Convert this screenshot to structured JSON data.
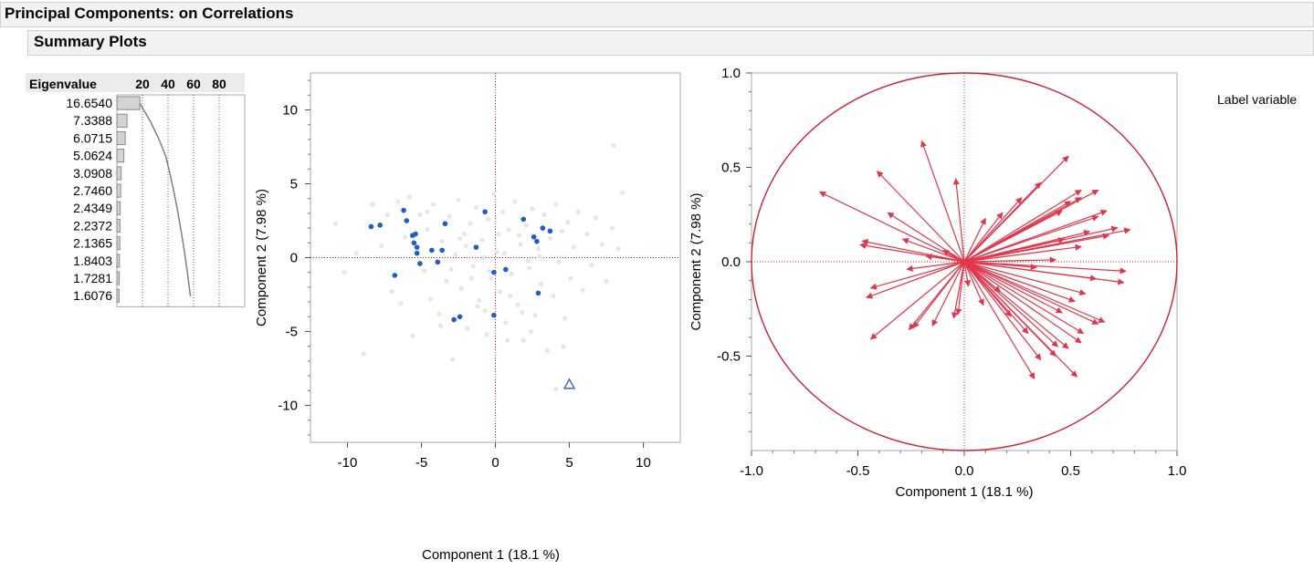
{
  "headers": {
    "main_title": "Principal Components: on Correlations",
    "sub_title": "Summary Plots"
  },
  "label_variable": "Label variable",
  "bottom_xlabel": "Component 1  (18.1 %)",
  "colors": {
    "header_bg": "#f2f2f2",
    "bar_fill": "#d3d3d3",
    "score_point": "#1f5fbf",
    "background_point": "#e6e6e6",
    "loading_arrow": "#e0364b",
    "reference_line": "#cc2233"
  },
  "chart_data": [
    {
      "type": "bar",
      "name": "eigenvalue-bars",
      "header_label": "Eigenvalue",
      "values": [
        16.654,
        7.3388,
        6.0715,
        5.0624,
        3.0908,
        2.746,
        2.4349,
        2.2372,
        2.1365,
        1.8403,
        1.7281,
        1.6076
      ],
      "value_labels": [
        "16.6540",
        "7.3388",
        "6.0715",
        "5.0624",
        "3.0908",
        "2.7460",
        "2.4349",
        "2.2372",
        "2.1365",
        "1.8403",
        "1.7281",
        "1.6076"
      ],
      "axis_ticks": [
        "20",
        "40",
        "60",
        "80"
      ],
      "xlim": [
        0,
        100
      ],
      "cumulative_percent": [
        18.1,
        26.1,
        32.7,
        38.2,
        41.5,
        44.5,
        47.2,
        49.6,
        51.9,
        53.9,
        55.8,
        57.5
      ]
    },
    {
      "type": "scatter",
      "name": "score-plot",
      "xlabel": "Component 1  (18.1 %)",
      "ylabel": "Component 2  (7.98 %)",
      "xlim": [
        -12.5,
        12.5
      ],
      "ylim": [
        -12.5,
        12.5
      ],
      "x_ticks": [
        -10,
        -5,
        0,
        5,
        10
      ],
      "y_ticks": [
        10,
        5,
        0,
        -5,
        -10
      ],
      "x_tick_labels": [
        "-10",
        "-5",
        "0",
        "5",
        "10"
      ],
      "y_tick_labels": [
        "10",
        "5",
        "0",
        "-5",
        "-10"
      ],
      "highlighted_points": [
        [
          -8.4,
          2.1
        ],
        [
          -7.8,
          2.2
        ],
        [
          -6.2,
          3.2
        ],
        [
          -6.0,
          2.5
        ],
        [
          -5.6,
          1.5
        ],
        [
          -5.4,
          1.6
        ],
        [
          -5.5,
          1.0
        ],
        [
          -5.3,
          0.7
        ],
        [
          -4.3,
          0.5
        ],
        [
          -3.6,
          0.5
        ],
        [
          -3.9,
          -0.3
        ],
        [
          -5.1,
          -0.4
        ],
        [
          -5.3,
          0.3
        ],
        [
          -6.8,
          -1.2
        ],
        [
          -3.4,
          2.3
        ],
        [
          -1.3,
          0.7
        ],
        [
          -0.7,
          3.1
        ],
        [
          -0.1,
          -1.0
        ],
        [
          0.7,
          -0.8
        ],
        [
          1.9,
          2.6
        ],
        [
          2.6,
          1.4
        ],
        [
          2.8,
          1.1
        ],
        [
          3.2,
          2.0
        ],
        [
          3.7,
          1.8
        ],
        [
          2.9,
          -2.4
        ],
        [
          -0.1,
          -3.9
        ],
        [
          -2.8,
          -4.2
        ],
        [
          -2.4,
          -4.0
        ]
      ],
      "background_points": [
        [
          -10.8,
          2.3
        ],
        [
          -10.2,
          -1.0
        ],
        [
          -9.4,
          0.3
        ],
        [
          -8.9,
          -6.5
        ],
        [
          -8.3,
          3.6
        ],
        [
          -7.7,
          0.8
        ],
        [
          -7.3,
          2.9
        ],
        [
          -7.0,
          -2.3
        ],
        [
          -6.6,
          3.8
        ],
        [
          -6.4,
          -3.1
        ],
        [
          -6.1,
          1.4
        ],
        [
          -5.8,
          4.1
        ],
        [
          -5.6,
          -5.3
        ],
        [
          -5.1,
          2.9
        ],
        [
          -4.8,
          -0.9
        ],
        [
          -4.6,
          1.9
        ],
        [
          -4.4,
          -2.8
        ],
        [
          -4.2,
          3.6
        ],
        [
          -3.8,
          -3.8
        ],
        [
          -3.6,
          1.1
        ],
        [
          -3.3,
          -1.6
        ],
        [
          -3.1,
          2.8
        ],
        [
          -2.9,
          -6.9
        ],
        [
          -2.7,
          0.2
        ],
        [
          -2.5,
          3.9
        ],
        [
          -2.3,
          -2.1
        ],
        [
          -2.1,
          1.6
        ],
        [
          -1.9,
          -4.8
        ],
        [
          -1.7,
          2.3
        ],
        [
          -1.5,
          -0.6
        ],
        [
          -1.3,
          3.4
        ],
        [
          -1.1,
          -2.9
        ],
        [
          -0.9,
          1.2
        ],
        [
          -0.7,
          -3.6
        ],
        [
          -0.5,
          2.6
        ],
        [
          -0.3,
          -1.4
        ],
        [
          -0.1,
          4.3
        ],
        [
          0.1,
          0.4
        ],
        [
          0.3,
          -2.3
        ],
        [
          0.5,
          3.1
        ],
        [
          0.7,
          -4.4
        ],
        [
          0.9,
          1.9
        ],
        [
          1.1,
          -1.1
        ],
        [
          1.3,
          3.8
        ],
        [
          1.5,
          -3.2
        ],
        [
          1.7,
          0.9
        ],
        [
          1.9,
          -5.6
        ],
        [
          2.1,
          2.2
        ],
        [
          2.3,
          -0.7
        ],
        [
          2.5,
          3.3
        ],
        [
          2.7,
          -3.9
        ],
        [
          2.9,
          0.6
        ],
        [
          3.1,
          -1.8
        ],
        [
          3.3,
          2.9
        ],
        [
          3.5,
          -6.3
        ],
        [
          3.7,
          1.3
        ],
        [
          3.9,
          -2.6
        ],
        [
          4.1,
          3.6
        ],
        [
          4.3,
          -0.3
        ],
        [
          4.5,
          1.8
        ],
        [
          4.7,
          -4.1
        ],
        [
          4.9,
          2.4
        ],
        [
          5.1,
          -1.4
        ],
        [
          5.3,
          0.7
        ],
        [
          5.6,
          3.1
        ],
        [
          5.9,
          -2.2
        ],
        [
          6.2,
          1.6
        ],
        [
          6.5,
          -0.5
        ],
        [
          6.8,
          2.7
        ],
        [
          7.2,
          0.9
        ],
        [
          7.5,
          -1.6
        ],
        [
          7.9,
          2.0
        ],
        [
          8.3,
          0.6
        ],
        [
          8.6,
          4.4
        ],
        [
          8.0,
          7.6
        ],
        [
          4.1,
          -8.9
        ],
        [
          -4.6,
          3.1
        ],
        [
          -2.0,
          0.8
        ],
        [
          1.6,
          1.5
        ],
        [
          -0.4,
          -0.9
        ],
        [
          0.6,
          0.3
        ],
        [
          -1.6,
          -1.4
        ],
        [
          2.2,
          -0.2
        ],
        [
          -3.0,
          -0.8
        ],
        [
          1.0,
          -2.6
        ],
        [
          -0.8,
          0.0
        ],
        [
          3.0,
          0.1
        ],
        [
          -2.4,
          1.3
        ],
        [
          0.2,
          1.6
        ],
        [
          -1.2,
          -3.3
        ],
        [
          1.8,
          -3.7
        ],
        [
          -0.6,
          -5.2
        ],
        [
          0.8,
          -5.6
        ],
        [
          -3.7,
          -4.6
        ],
        [
          2.4,
          -5.0
        ],
        [
          4.6,
          -6.0
        ]
      ],
      "excluded_point": [
        5.0,
        -8.6
      ]
    },
    {
      "type": "scatter",
      "name": "loading-plot",
      "xlabel": "Component 1  (18.1 %)",
      "ylabel": "Component 2  (7.98 %)",
      "xlim": [
        -1.0,
        1.0
      ],
      "ylim": [
        -1.0,
        1.0
      ],
      "x_ticks": [
        -1.0,
        -0.5,
        0.0,
        0.5,
        1.0
      ],
      "y_ticks": [
        1.0,
        0.5,
        0.0,
        -0.5
      ],
      "x_tick_labels": [
        "-1.0",
        "-0.5",
        "0.0",
        "0.5",
        "1.0"
      ],
      "y_tick_labels": [
        "1.0",
        "0.5",
        "0.0",
        "-0.5"
      ],
      "loadings": [
        [
          -0.68,
          0.37
        ],
        [
          -0.41,
          0.48
        ],
        [
          -0.2,
          0.64
        ],
        [
          -0.04,
          0.44
        ],
        [
          -0.36,
          0.26
        ],
        [
          -0.48,
          0.11
        ],
        [
          -0.49,
          0.09
        ],
        [
          -0.29,
          0.12
        ],
        [
          -0.27,
          -0.04
        ],
        [
          -0.44,
          -0.14
        ],
        [
          -0.46,
          -0.19
        ],
        [
          -0.44,
          -0.41
        ],
        [
          -0.26,
          -0.36
        ],
        [
          -0.24,
          -0.35
        ],
        [
          -0.15,
          -0.34
        ],
        [
          -0.05,
          -0.3
        ],
        [
          -0.03,
          -0.28
        ],
        [
          0.02,
          -0.13
        ],
        [
          -0.18,
          0.03
        ],
        [
          -0.1,
          0.06
        ],
        [
          0.1,
          0.23
        ],
        [
          0.18,
          0.26
        ],
        [
          0.27,
          0.34
        ],
        [
          0.36,
          0.42
        ],
        [
          0.49,
          0.56
        ],
        [
          0.55,
          0.38
        ],
        [
          0.63,
          0.38
        ],
        [
          0.55,
          0.34
        ],
        [
          0.5,
          0.32
        ],
        [
          0.46,
          0.27
        ],
        [
          0.67,
          0.27
        ],
        [
          0.63,
          0.24
        ],
        [
          0.72,
          0.18
        ],
        [
          0.78,
          0.17
        ],
        [
          0.59,
          0.16
        ],
        [
          0.68,
          0.14
        ],
        [
          0.47,
          0.12
        ],
        [
          0.55,
          0.08
        ],
        [
          0.43,
          0.01
        ],
        [
          0.34,
          -0.03
        ],
        [
          0.76,
          -0.05
        ],
        [
          0.75,
          -0.11
        ],
        [
          0.62,
          -0.09
        ],
        [
          0.57,
          -0.17
        ],
        [
          0.52,
          -0.21
        ],
        [
          0.46,
          -0.27
        ],
        [
          0.66,
          -0.32
        ],
        [
          0.63,
          -0.33
        ],
        [
          0.56,
          -0.38
        ],
        [
          0.55,
          -0.43
        ],
        [
          0.49,
          -0.46
        ],
        [
          0.43,
          -0.5
        ],
        [
          0.36,
          -0.52
        ],
        [
          0.33,
          -0.62
        ],
        [
          0.53,
          -0.61
        ],
        [
          0.44,
          -0.45
        ],
        [
          0.3,
          -0.38
        ],
        [
          0.22,
          -0.29
        ],
        [
          0.17,
          -0.16
        ],
        [
          0.09,
          -0.23
        ]
      ]
    }
  ]
}
